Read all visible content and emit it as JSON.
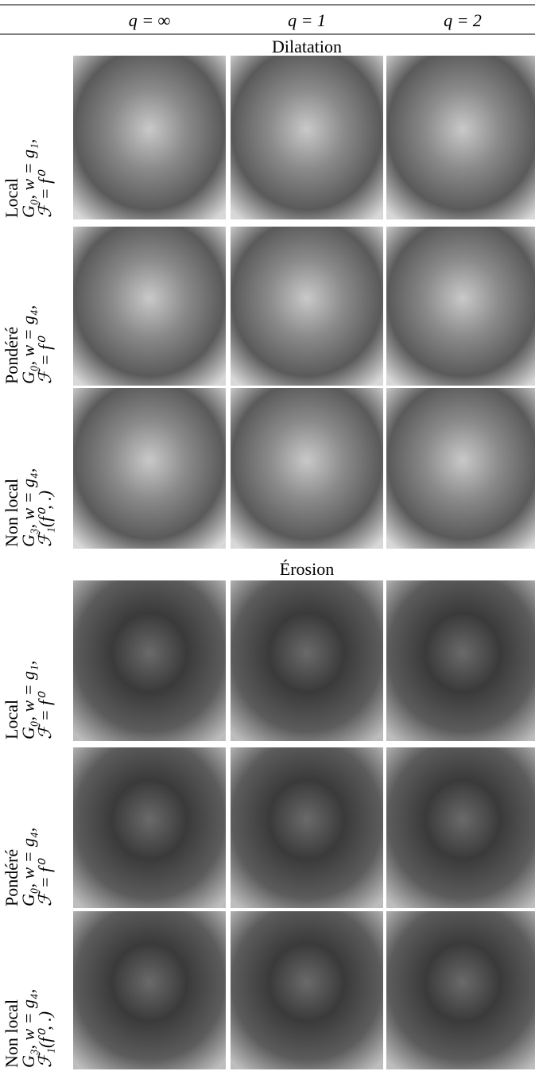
{
  "table": {
    "columns": [
      "q = ∞",
      "q = 1",
      "q = 2"
    ],
    "sections": [
      {
        "title": "Dilatation",
        "rows": [
          {
            "label": [
              "Local",
              "G₀, w = g₁,",
              "ℱ = f⁰"
            ]
          },
          {
            "label": [
              "Pondéré",
              "G₀, w = g₄,",
              "ℱ = f⁰"
            ]
          },
          {
            "label": [
              "Non local",
              "G₃, w = g₄,",
              "ℱ₁(f⁰, .)"
            ]
          }
        ]
      },
      {
        "title": "Érosion",
        "rows": [
          {
            "label": [
              "Local",
              "G₀, w = g₁,",
              "ℱ = f⁰"
            ]
          },
          {
            "label": [
              "Pondéré",
              "G₀, w = g₄,",
              "ℱ = f⁰"
            ]
          },
          {
            "label": [
              "Non local",
              "G₃, w = g₄,",
              "ℱ₁(f⁰, .)"
            ]
          }
        ]
      }
    ]
  }
}
